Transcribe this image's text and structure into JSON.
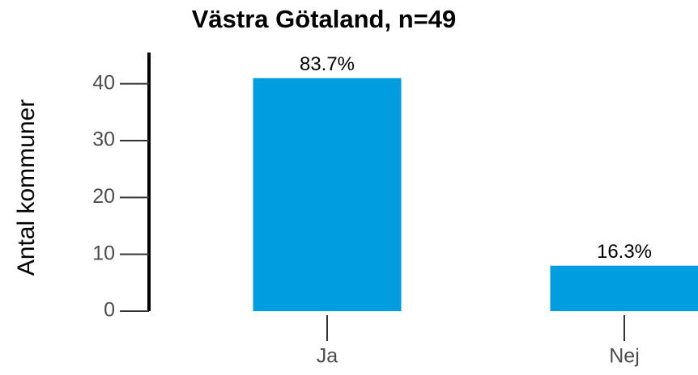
{
  "chart_data": {
    "type": "bar",
    "title": "Västra Götaland, n=49",
    "ylabel": "Antal kommuner",
    "categories": [
      "Ja",
      "Nej"
    ],
    "values": [
      41,
      8
    ],
    "value_labels": [
      "83.7%",
      "16.3%"
    ],
    "color": "#009de0",
    "ylim": [
      0,
      45.5
    ],
    "yticks": [
      0,
      10,
      20,
      30,
      40
    ]
  }
}
